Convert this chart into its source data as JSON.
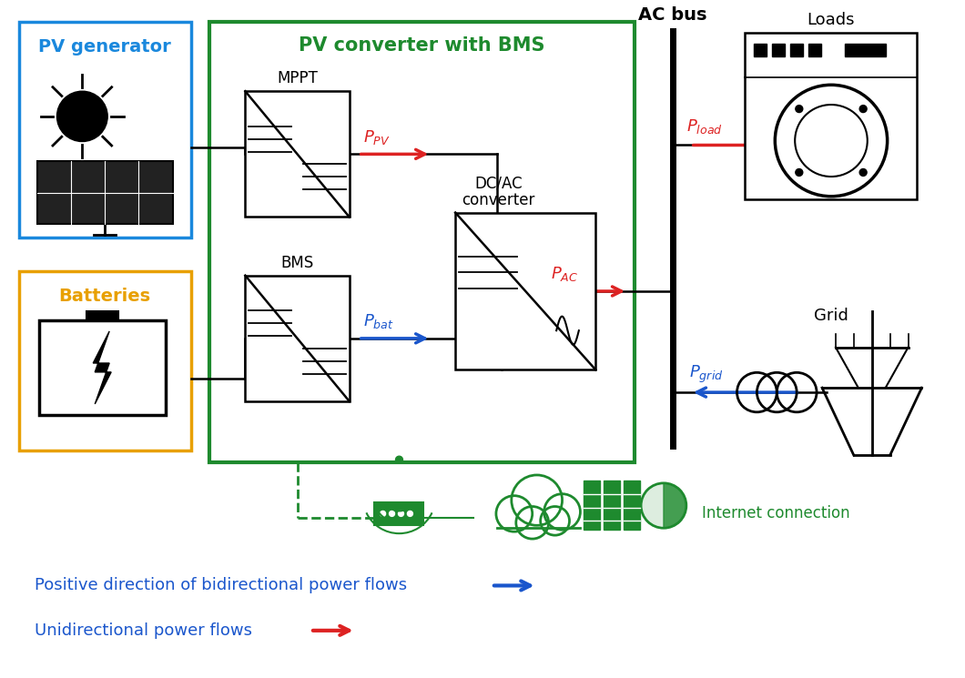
{
  "bg": "#ffffff",
  "colors": {
    "blue": "#1a56cc",
    "red": "#dd2222",
    "green": "#1e8a2e",
    "orange": "#e8a000",
    "light_blue": "#1a88dd",
    "black": "#111111"
  },
  "legend_blue": "Positive direction of bidirectional power flows",
  "legend_red": "Unidirectional power flows",
  "internet_text": "Internet connection"
}
